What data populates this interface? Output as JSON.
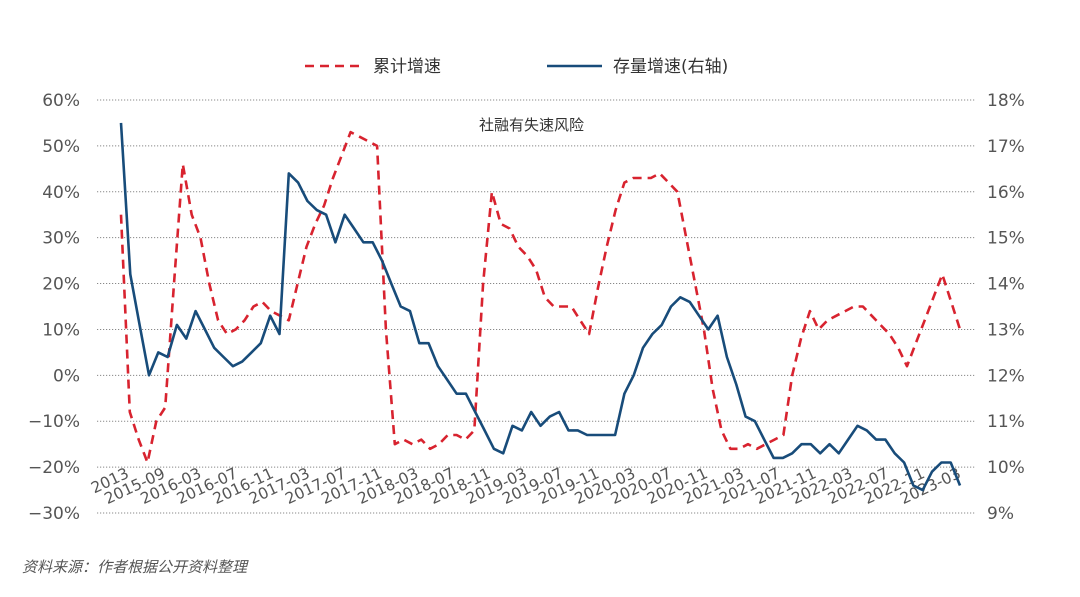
{
  "source_note": "资料来源：作者根据公开资料整理",
  "colors": {
    "cumulative": "#d8232f",
    "stock": "#184c7a",
    "grid": "#888888",
    "text": "#555555"
  },
  "chart_data": {
    "type": "line",
    "annotation": "社融有失速风险",
    "x_tick_labels": [
      "2013",
      "2015-09",
      "2016-03",
      "2016-07",
      "2016-11",
      "2017-03",
      "2017-07",
      "2017-11",
      "2018-03",
      "2018-07",
      "2018-11",
      "2019-03",
      "2019-07",
      "2019-11",
      "2020-03",
      "2020-07",
      "2020-11",
      "2021-03",
      "2021-07",
      "2021-11",
      "2022-03",
      "2022-07",
      "2022-11",
      "2023-03"
    ],
    "left_axis": {
      "ylim": [
        -30,
        60
      ],
      "ticks": [
        "60%",
        "50%",
        "40%",
        "30%",
        "20%",
        "10%",
        "0%",
        "−10%",
        "−20%",
        "−30%"
      ]
    },
    "right_axis": {
      "ylim": [
        9,
        18
      ],
      "ticks": [
        "18%",
        "17%",
        "16%",
        "15%",
        "14%",
        "13%",
        "12%",
        "11%",
        "10%",
        "9%"
      ]
    },
    "series": [
      {
        "name": "累计增速",
        "axis": "left",
        "style": "dashed",
        "values": [
          35,
          -8,
          -14,
          -19,
          -10,
          -7,
          20,
          46,
          35,
          30,
          20,
          12,
          9,
          10,
          12,
          15,
          16,
          14,
          13,
          12,
          20,
          28,
          33,
          37,
          43,
          48,
          53,
          52,
          51,
          50,
          10,
          -15,
          -14,
          -15,
          -14,
          -16,
          -15,
          -13,
          -13,
          -14,
          -12,
          20,
          40,
          33,
          32,
          28,
          26,
          23,
          17,
          15,
          15,
          15,
          12,
          9,
          19,
          28,
          36,
          42,
          43,
          43,
          43,
          44,
          42,
          40,
          30,
          20,
          10,
          -3,
          -12,
          -16,
          -16,
          -15,
          -16,
          -15,
          -14,
          -13,
          0,
          8,
          14,
          10,
          12,
          13,
          14,
          15,
          15,
          13,
          11,
          9,
          6,
          2,
          7,
          12,
          17,
          22,
          16,
          10
        ]
      },
      {
        "name": "存量增速(右轴)",
        "axis": "right",
        "style": "solid",
        "values": [
          17.5,
          14.2,
          13.1,
          12,
          12.5,
          12.4,
          13.1,
          12.8,
          13.4,
          13,
          12.6,
          12.4,
          12.2,
          12.3,
          12.5,
          12.7,
          13.3,
          12.9,
          16.4,
          16.2,
          15.8,
          15.6,
          15.5,
          14.9,
          15.5,
          15.2,
          14.9,
          14.9,
          14.5,
          14,
          13.5,
          13.4,
          12.7,
          12.7,
          12.2,
          11.9,
          11.6,
          11.6,
          11.2,
          10.8,
          10.4,
          10.3,
          10.9,
          10.8,
          11.2,
          10.9,
          11.1,
          11.2,
          10.8,
          10.8,
          10.7,
          10.7,
          10.7,
          10.7,
          11.6,
          12,
          12.6,
          12.9,
          13.1,
          13.5,
          13.7,
          13.6,
          13.3,
          13,
          13.3,
          12.4,
          11.8,
          11.1,
          11,
          10.6,
          10.2,
          10.2,
          10.3,
          10.5,
          10.5,
          10.3,
          10.5,
          10.3,
          10.6,
          10.9,
          10.8,
          10.6,
          10.6,
          10.3,
          10.1,
          9.6,
          9.5,
          9.9,
          10.1,
          10.1,
          9.6
        ]
      }
    ]
  }
}
